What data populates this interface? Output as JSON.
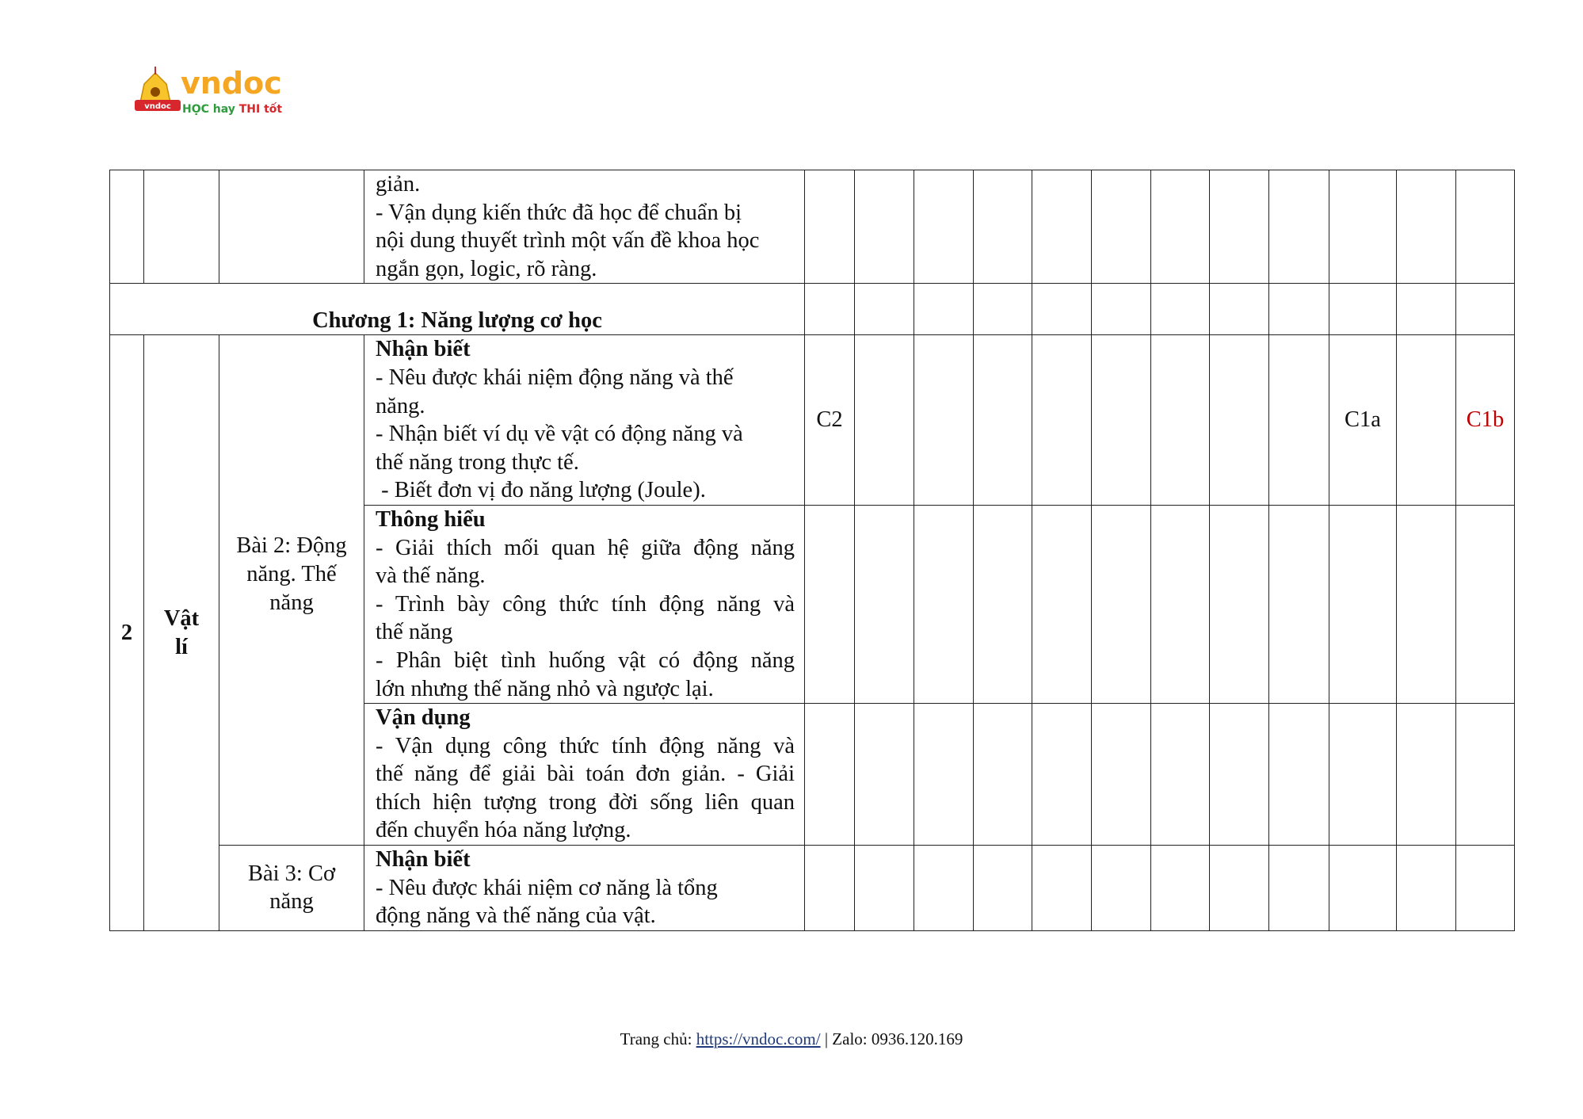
{
  "logo": {
    "brand": "vndoc",
    "tagline_part1": "HỌC hay",
    "tagline_part2": "THI tốt",
    "badge": "vndoc"
  },
  "colors": {
    "accent_red": "#c00000",
    "logo_orange": "#f5a623",
    "logo_green": "#2e9b3c"
  },
  "rows": [
    {
      "lines": [
        "giản.",
        "- Vận dụng kiến thức đã học để chuẩn bị",
        "nội dung thuyết trình một vấn đề khoa học",
        "ngắn gọn, logic, rõ ràng."
      ],
      "marks": [
        "",
        "",
        "",
        "",
        "",
        "",
        "",
        "",
        "",
        "",
        "",
        ""
      ]
    },
    {
      "chapter": "Chương 1: Năng lượng cơ học",
      "marks": [
        "",
        "",
        "",
        "",
        "",
        "",
        "",
        "",
        "",
        "",
        "",
        ""
      ]
    },
    {
      "no": "2",
      "subject_line1": "Vật",
      "subject_line2": "lí",
      "lesson_line1": "Bài 2: Động",
      "lesson_line2": "năng. Thế",
      "lesson_line3": "năng",
      "heading": "Nhận biết",
      "lines": [
        "- Nêu được khái niệm động năng và thế",
        "năng.",
        "- Nhận biết ví dụ về vật có động năng và",
        "thế năng trong thực tế.",
        " - Biết đơn vị đo năng lượng (Joule)."
      ],
      "marks": [
        "C2",
        "",
        "",
        "",
        "",
        "",
        "",
        "",
        "",
        "C1a",
        "",
        "C1b"
      ]
    },
    {
      "heading": "Thông hiểu",
      "lines": [
        "- Giải thích mối quan hệ giữa động năng",
        "và thế năng.",
        "- Trình bày công thức tính động năng và",
        "thế năng",
        "- Phân biệt tình huống vật có động năng",
        "lớn nhưng thế năng nhỏ và ngược lại."
      ],
      "marks": [
        "",
        "",
        "",
        "",
        "",
        "",
        "",
        "",
        "",
        "",
        "",
        ""
      ]
    },
    {
      "heading": "Vận dụng",
      "lines": [
        "- Vận dụng công thức tính động năng và",
        "thế năng để giải bài toán đơn giản. - Giải",
        "thích hiện tượng trong đời sống liên quan",
        "đến chuyển hóa năng lượng."
      ],
      "marks": [
        "",
        "",
        "",
        "",
        "",
        "",
        "",
        "",
        "",
        "",
        "",
        ""
      ]
    },
    {
      "lesson_line1": "Bài 3: Cơ",
      "lesson_line2": "năng",
      "heading": "Nhận biết",
      "lines": [
        "- Nêu được khái niệm cơ năng là tổng",
        "động năng và thế năng của vật."
      ],
      "marks": [
        "",
        "",
        "",
        "",
        "",
        "",
        "",
        "",
        "",
        "",
        "",
        ""
      ]
    }
  ],
  "footer": {
    "prefix": "Trang chủ: ",
    "link": "https://vndoc.com/",
    "suffix": " | Zalo: 0936.120.169"
  }
}
